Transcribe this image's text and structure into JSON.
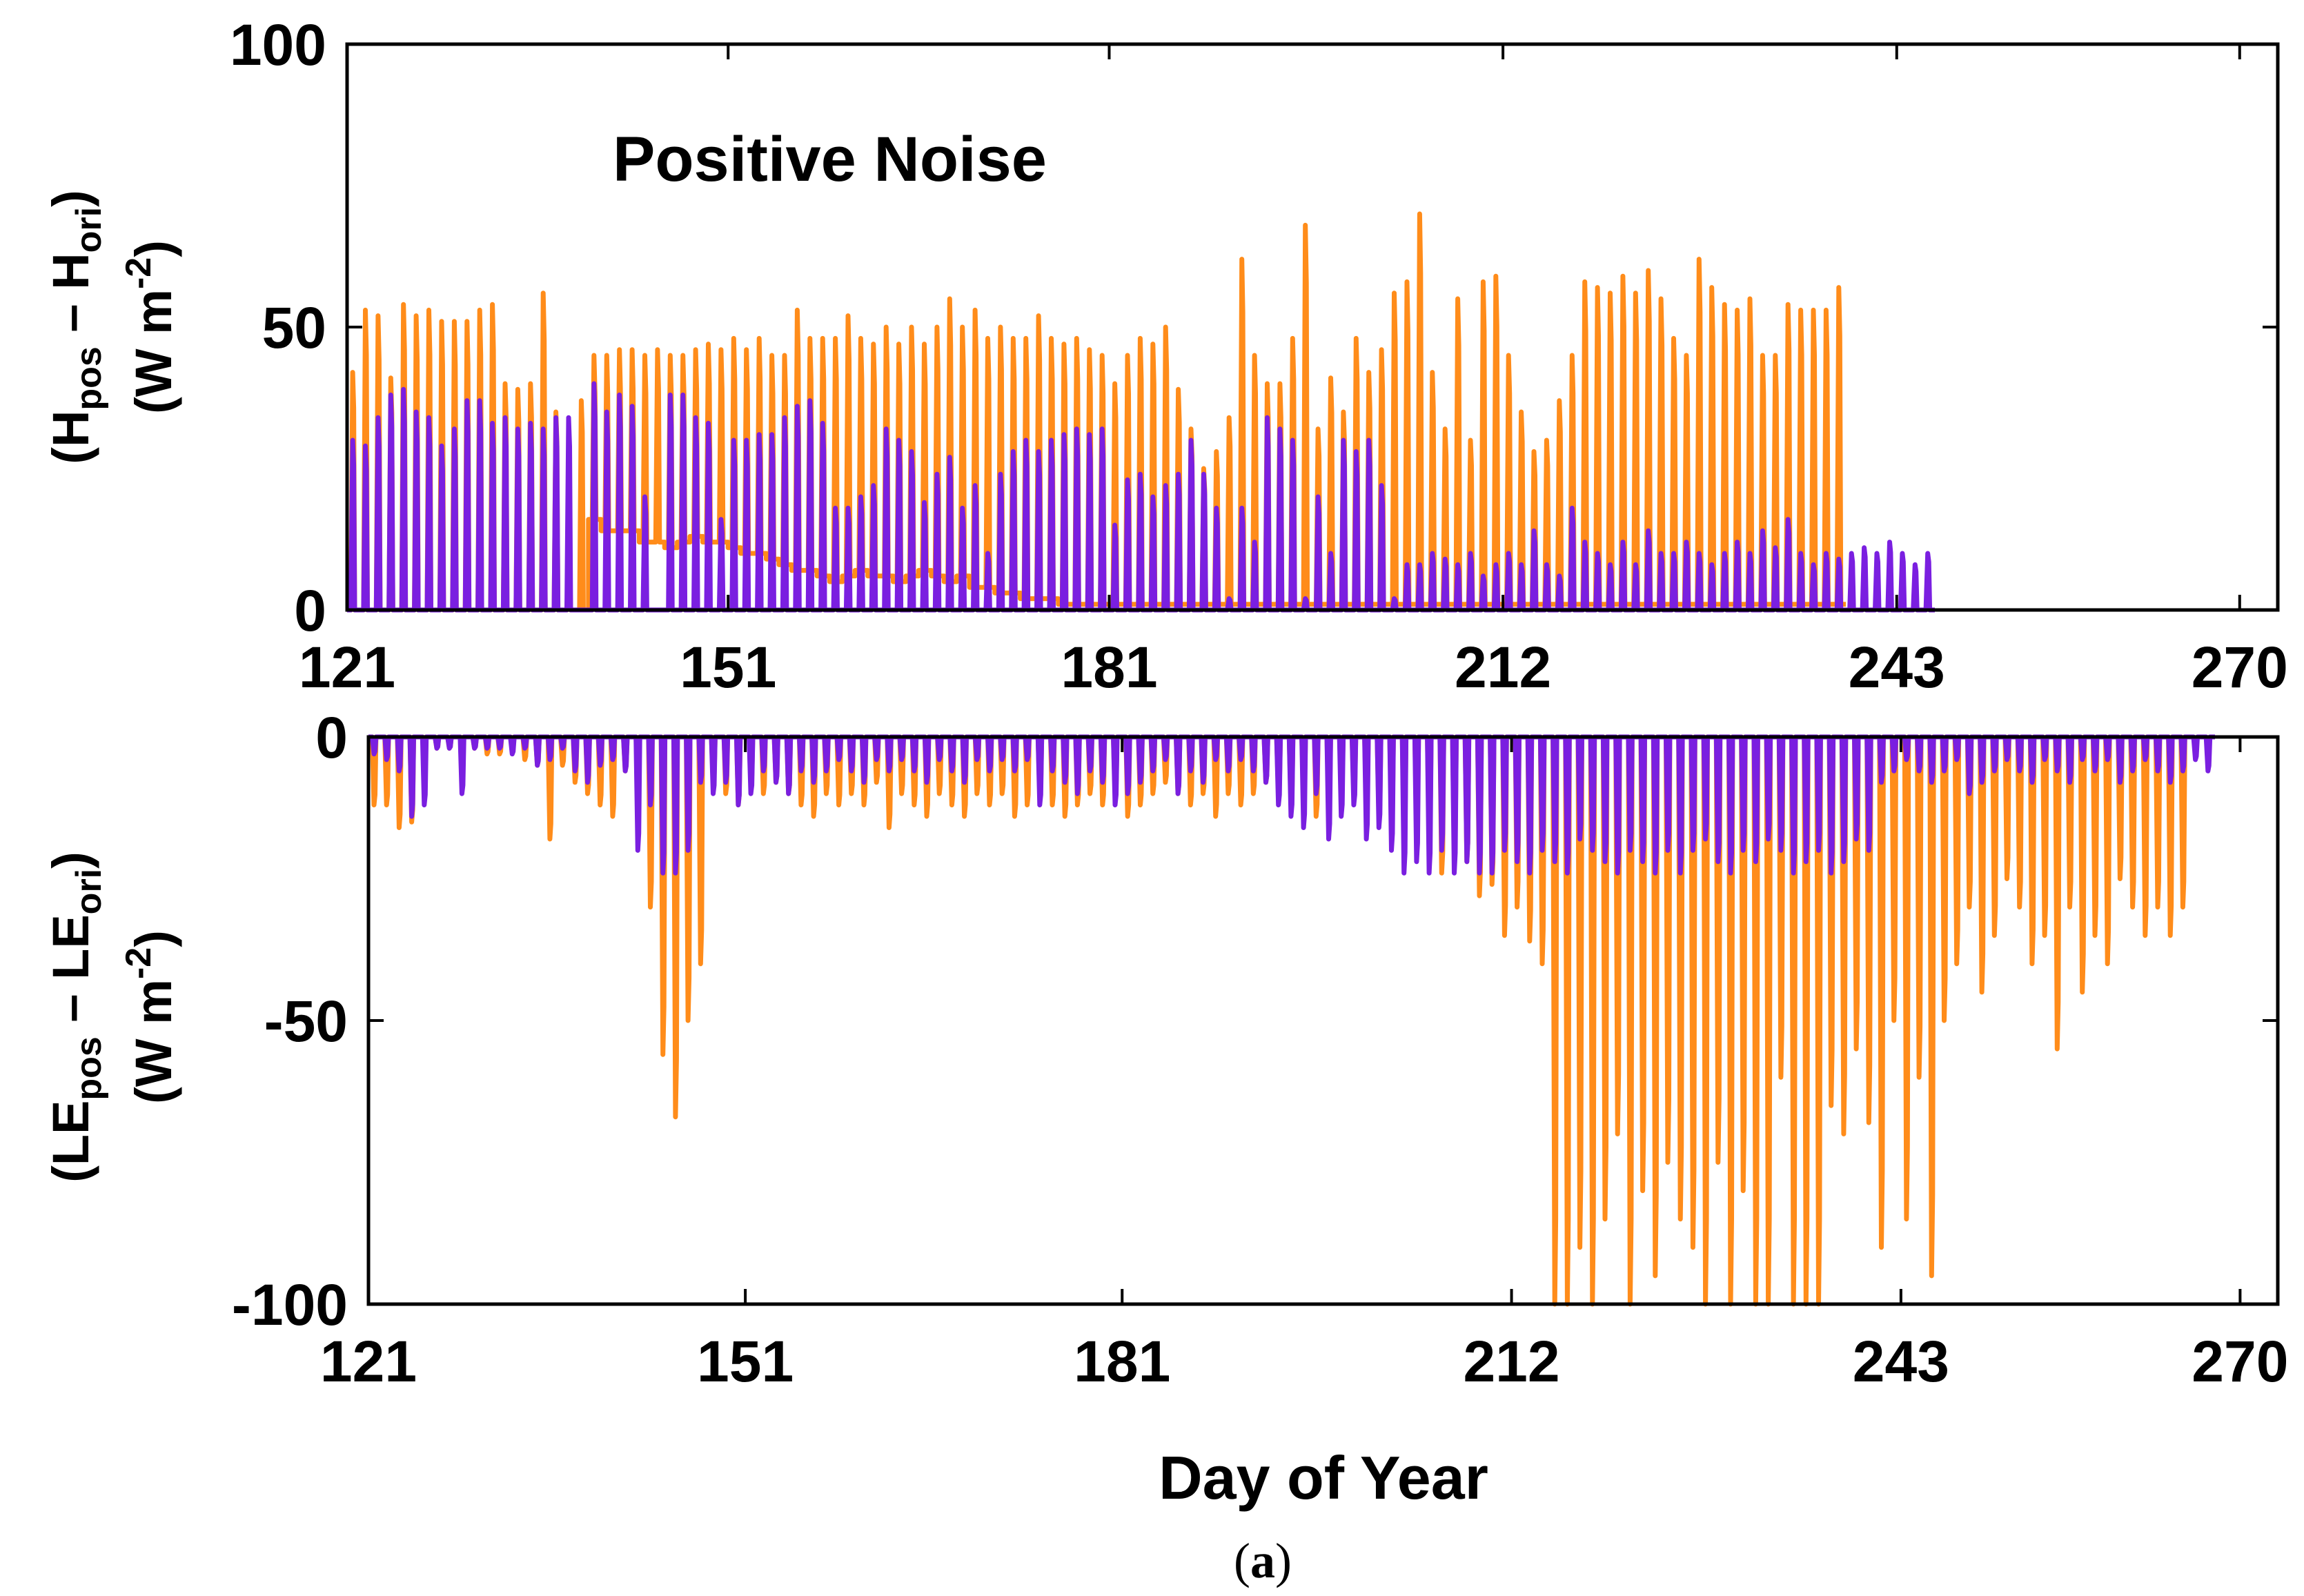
{
  "chart_data": [
    {
      "type": "line",
      "panel": "top",
      "annotation": "Positive Noise",
      "ylabel": {
        "line1_main": "(H",
        "line1_sub1": "pos",
        "line1_mid": " – H",
        "line1_sub2": "ori",
        "line1_end": ")",
        "line2_main": "(W m",
        "line2_sup": "-2",
        "line2_end": ")"
      },
      "xlabel": "",
      "xlim": [
        121,
        273
      ],
      "ylim": [
        0,
        100
      ],
      "xticks": [
        121,
        151,
        181,
        212,
        243,
        270
      ],
      "xtick_labels": [
        "121",
        "151",
        "181",
        "212",
        "243",
        "270"
      ],
      "yticks": [
        0,
        50,
        100
      ],
      "ytick_labels": [
        "0",
        "50",
        "100"
      ],
      "day_start": 121,
      "series": [
        {
          "name": "orange",
          "color": "#ff8c1a",
          "daily_peaks": [
            42,
            53,
            52,
            41,
            54,
            52,
            53,
            51,
            51,
            51,
            53,
            54,
            40,
            39,
            40,
            56,
            35,
            10,
            37,
            45,
            45,
            46,
            46,
            45,
            46,
            45,
            45,
            46,
            47,
            46,
            48,
            46,
            48,
            45,
            45,
            53,
            48,
            48,
            48,
            52,
            48,
            47,
            50,
            47,
            50,
            47,
            50,
            55,
            50,
            53,
            48,
            50,
            48,
            48,
            52,
            48,
            47,
            48,
            46,
            45,
            40,
            45,
            48,
            47,
            50,
            39,
            32,
            25,
            28,
            34,
            62,
            45,
            40,
            40,
            48,
            68,
            32,
            41,
            35,
            48,
            42,
            46,
            56,
            58,
            70,
            42,
            32,
            55,
            30,
            58,
            59,
            45,
            35,
            28,
            30,
            37,
            45,
            58,
            57,
            56,
            59,
            56,
            60,
            55,
            48,
            45,
            62,
            57,
            54,
            53,
            55,
            45,
            45,
            54,
            53,
            53,
            53,
            57
          ],
          "daily_troughs": [
            0,
            0,
            0,
            0,
            0,
            0,
            0,
            0,
            0,
            0,
            0,
            0,
            0,
            0,
            0,
            0,
            0,
            0,
            0,
            16,
            14,
            14,
            14,
            12,
            12,
            11,
            12,
            13,
            12,
            12,
            11,
            10,
            10,
            9,
            8,
            7,
            7,
            6,
            5,
            6,
            7,
            6,
            6,
            5,
            6,
            7,
            6,
            5,
            6,
            4,
            4,
            3,
            3,
            2,
            2,
            2,
            1,
            1,
            1,
            1,
            1,
            1,
            1,
            1,
            1,
            1,
            1,
            1,
            1,
            1,
            1,
            1,
            1,
            1,
            1,
            1,
            1,
            1,
            1,
            1,
            1,
            1,
            1,
            1,
            1,
            1,
            1,
            1,
            1,
            1,
            1,
            1,
            1,
            1,
            1,
            1,
            1,
            1,
            1,
            1,
            1,
            1,
            1,
            1,
            1,
            1,
            1,
            1,
            1,
            1,
            1,
            1,
            1,
            1,
            1,
            1,
            1,
            1
          ]
        },
        {
          "name": "purple",
          "color": "#7a1fe0",
          "daily_peaks": [
            30,
            29,
            34,
            38,
            39,
            35,
            34,
            29,
            32,
            37,
            37,
            33,
            34,
            32,
            33,
            32,
            34,
            34,
            0,
            40,
            35,
            38,
            36,
            20,
            0,
            38,
            38,
            34,
            33,
            16,
            30,
            30,
            31,
            31,
            34,
            36,
            37,
            33,
            18,
            18,
            20,
            22,
            32,
            30,
            28,
            19,
            24,
            27,
            18,
            22,
            10,
            24,
            28,
            30,
            28,
            30,
            31,
            32,
            31,
            32,
            15,
            23,
            24,
            20,
            22,
            24,
            30,
            24,
            18,
            2,
            18,
            12,
            34,
            32,
            30,
            2,
            20,
            10,
            30,
            28,
            30,
            22,
            2,
            8,
            8,
            10,
            9,
            8,
            10,
            6,
            8,
            10,
            8,
            14,
            8,
            6,
            18,
            12,
            10,
            8,
            12,
            8,
            14,
            10,
            10,
            12,
            10,
            8,
            10,
            12,
            10,
            14,
            11,
            16,
            10,
            8,
            10,
            9,
            10,
            11,
            10,
            12,
            10,
            8,
            10
          ]
        }
      ]
    },
    {
      "type": "line",
      "panel": "bottom",
      "ylabel": {
        "line1_main": "(LE",
        "line1_sub1": "pos",
        "line1_mid": " – LE",
        "line1_sub2": "ori",
        "line1_end": ")",
        "line2_main": "(W m",
        "line2_sup": "-2",
        "line2_end": ")"
      },
      "xlabel": "Day of Year",
      "xlim": [
        121,
        273
      ],
      "ylim": [
        -100,
        0
      ],
      "xticks": [
        121,
        151,
        181,
        212,
        243,
        270
      ],
      "xtick_labels": [
        "121",
        "151",
        "181",
        "212",
        "243",
        "270"
      ],
      "yticks": [
        0,
        -50,
        -100
      ],
      "ytick_labels": [
        "0",
        "-50",
        "-100"
      ],
      "day_start": 121,
      "series": [
        {
          "name": "orange",
          "color": "#ff8c1a",
          "daily_peaks": [
            -12,
            -12,
            -16,
            -15,
            -2,
            -2,
            -2,
            -3,
            -2,
            -3,
            -3,
            -2,
            -4,
            -5,
            -18,
            -5,
            -8,
            -10,
            -12,
            -14,
            -6,
            -8,
            -30,
            -56,
            -67,
            -50,
            -40,
            -8,
            -10,
            -12,
            -8,
            -10,
            -8,
            -10,
            -12,
            -14,
            -10,
            -12,
            -10,
            -12,
            -8,
            -16,
            -10,
            -12,
            -14,
            -10,
            -12,
            -14,
            -10,
            -12,
            -10,
            -14,
            -12,
            -10,
            -12,
            -14,
            -12,
            -10,
            -12,
            -10,
            -14,
            -12,
            -10,
            -8,
            -10,
            -12,
            -10,
            -14,
            -10,
            -12,
            -10,
            -8,
            -10,
            -12,
            -10,
            -14,
            -12,
            -8,
            -10,
            -12,
            -14,
            -15,
            -18,
            -16,
            -18,
            -24,
            -20,
            -22,
            -28,
            -26,
            -35,
            -30,
            -36,
            -40,
            -100,
            -100,
            -90,
            -100,
            -85,
            -70,
            -100,
            -80,
            -95,
            -75,
            -85,
            -90,
            -100,
            -75,
            -100,
            -80,
            -100,
            -100,
            -60,
            -100,
            -100,
            -100,
            -65,
            -70,
            -55,
            -68,
            -90,
            -50,
            -85,
            -60,
            -95,
            -50,
            -40,
            -30,
            -45,
            -35,
            -25,
            -30,
            -40,
            -35,
            -55,
            -30,
            -45,
            -35,
            -40,
            -25,
            -30,
            -35,
            -30,
            -35,
            -30
          ],
          "daily_troughs": [
            0
          ]
        },
        {
          "name": "purple",
          "color": "#7a1fe0",
          "daily_peaks": [
            -3,
            -4,
            -6,
            -14,
            -12,
            -2,
            -2,
            -10,
            -2,
            -2,
            -2,
            -3,
            -2,
            -5,
            -4,
            -2,
            -6,
            -8,
            -5,
            -4,
            -6,
            -20,
            -12,
            -24,
            -24,
            -20,
            -8,
            -10,
            -8,
            -12,
            -10,
            -6,
            -8,
            -10,
            -6,
            -8,
            -6,
            -4,
            -6,
            -8,
            -4,
            -6,
            -4,
            -6,
            -8,
            -4,
            -6,
            -8,
            -4,
            -6,
            -4,
            -6,
            -4,
            -12,
            -6,
            -8,
            -10,
            -6,
            -8,
            -12,
            -10,
            -8,
            -6,
            -4,
            -10,
            -6,
            -8,
            -4,
            -6,
            -4,
            -6,
            -8,
            -12,
            -14,
            -16,
            -10,
            -18,
            -14,
            -12,
            -18,
            -16,
            -20,
            -24,
            -22,
            -24,
            -20,
            -24,
            -22,
            -24,
            -24,
            -20,
            -22,
            -24,
            -20,
            -22,
            -24,
            -18,
            -20,
            -22,
            -24,
            -20,
            -22,
            -24,
            -20,
            -24,
            -20,
            -18,
            -22,
            -24,
            -20,
            -22,
            -18,
            -20,
            -24,
            -22,
            -20,
            -24,
            -22,
            -18,
            -20,
            -8,
            -6,
            -4,
            -6,
            -8,
            -6,
            -4,
            -10,
            -8,
            -6,
            -4,
            -6,
            -8,
            -4,
            -6,
            -8,
            -4,
            -6,
            -4,
            -8,
            -6,
            -4,
            -6,
            -8,
            -6,
            -4,
            -6
          ]
        }
      ]
    }
  ],
  "caption": {
    "open": "(",
    "letter": "a",
    "close": ")"
  }
}
